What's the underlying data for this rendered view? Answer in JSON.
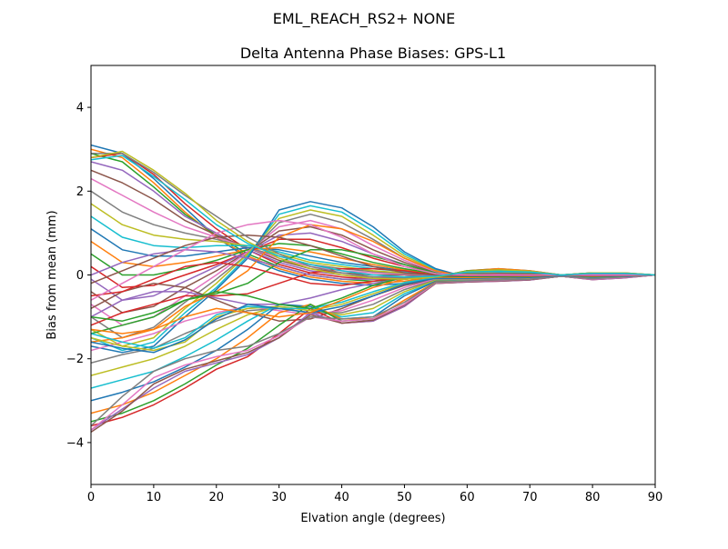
{
  "figure": {
    "suptitle": "EML_REACH_RS2+  NONE"
  },
  "chart_data": {
    "type": "line",
    "title": "Delta Antenna Phase Biases: GPS-L1",
    "xlabel": "Elvation angle (degrees)",
    "ylabel": "Bias from mean (mm)",
    "xlim": [
      0,
      90
    ],
    "ylim": [
      -5,
      5
    ],
    "x": [
      0,
      5,
      10,
      15,
      20,
      25,
      30,
      35,
      40,
      45,
      50,
      55,
      60,
      65,
      70,
      75,
      80,
      85,
      90
    ],
    "xticks": [
      0,
      10,
      20,
      30,
      40,
      50,
      60,
      70,
      80,
      90
    ],
    "yticks": [
      -4,
      -2,
      0,
      2,
      4
    ],
    "xtick_labels": [
      "0",
      "10",
      "20",
      "30",
      "40",
      "50",
      "60",
      "70",
      "80",
      "90"
    ],
    "ytick_labels": [
      "−4",
      "−2",
      "0",
      "2",
      "4"
    ],
    "grid": false,
    "legend": false,
    "colors": [
      "#1f77b4",
      "#ff7f0e",
      "#2ca02c",
      "#d62728",
      "#9467bd",
      "#8c564b",
      "#e377c2",
      "#7f7f7f",
      "#bcbd22",
      "#17becf"
    ],
    "series": [
      {
        "values": [
          3.1,
          2.9,
          2.3,
          1.6,
          0.9,
          0.4,
          0.1,
          -0.1,
          -0.2,
          -0.25,
          -0.2,
          -0.1,
          0.1,
          0.15,
          0.1,
          0.0,
          0.05,
          0.05,
          0.0
        ]
      },
      {
        "values": [
          3.0,
          2.8,
          2.2,
          1.5,
          0.9,
          0.45,
          0.15,
          -0.05,
          -0.15,
          -0.2,
          -0.15,
          -0.05,
          0.1,
          0.15,
          0.1,
          0.0,
          0.05,
          0.05,
          0.0
        ]
      },
      {
        "values": [
          2.9,
          2.7,
          2.1,
          1.45,
          0.95,
          0.5,
          0.2,
          0.0,
          -0.1,
          -0.15,
          -0.1,
          -0.05,
          0.1,
          0.12,
          0.08,
          0.0,
          0.05,
          0.04,
          0.0
        ]
      },
      {
        "values": [
          2.8,
          2.9,
          2.4,
          1.7,
          1.1,
          0.6,
          0.25,
          0.05,
          -0.05,
          -0.1,
          -0.1,
          -0.05,
          0.08,
          0.1,
          0.08,
          0.0,
          0.04,
          0.04,
          0.0
        ]
      },
      {
        "values": [
          2.7,
          2.5,
          2.0,
          1.4,
          1.0,
          0.6,
          0.3,
          0.1,
          0.0,
          -0.05,
          -0.05,
          -0.02,
          0.07,
          0.1,
          0.06,
          0.0,
          0.04,
          0.03,
          0.0
        ]
      },
      {
        "values": [
          2.5,
          2.2,
          1.8,
          1.3,
          0.95,
          0.65,
          0.35,
          0.15,
          0.05,
          0.0,
          0.0,
          -0.02,
          0.06,
          0.08,
          0.06,
          0.0,
          0.03,
          0.03,
          0.0
        ]
      },
      {
        "values": [
          2.3,
          1.9,
          1.5,
          1.15,
          0.9,
          0.65,
          0.4,
          0.2,
          0.1,
          0.05,
          0.02,
          0.0,
          0.05,
          0.07,
          0.05,
          0.0,
          0.03,
          0.02,
          0.0
        ]
      },
      {
        "values": [
          2.0,
          1.5,
          1.2,
          1.0,
          0.85,
          0.65,
          0.45,
          0.25,
          0.15,
          0.08,
          0.04,
          0.0,
          0.04,
          0.06,
          0.04,
          0.0,
          0.02,
          0.02,
          0.0
        ]
      },
      {
        "values": [
          1.7,
          1.2,
          0.95,
          0.85,
          0.8,
          0.7,
          0.5,
          0.3,
          0.2,
          0.1,
          0.05,
          0.0,
          0.04,
          0.05,
          0.04,
          0.0,
          0.02,
          0.02,
          0.0
        ]
      },
      {
        "values": [
          1.4,
          0.9,
          0.7,
          0.65,
          0.7,
          0.7,
          0.55,
          0.35,
          0.25,
          0.15,
          0.08,
          0.0,
          0.03,
          0.05,
          0.03,
          0.0,
          0.02,
          0.01,
          0.0
        ]
      },
      {
        "values": [
          1.1,
          0.6,
          0.45,
          0.45,
          0.55,
          0.65,
          0.6,
          0.45,
          0.3,
          0.2,
          0.1,
          0.02,
          0.03,
          0.04,
          0.03,
          0.0,
          0.01,
          0.01,
          0.0
        ]
      },
      {
        "values": [
          0.8,
          0.3,
          0.2,
          0.3,
          0.45,
          0.6,
          0.65,
          0.55,
          0.4,
          0.25,
          0.12,
          0.03,
          0.02,
          0.03,
          0.02,
          0.0,
          0.01,
          0.01,
          0.0
        ]
      },
      {
        "values": [
          0.5,
          0.0,
          0.0,
          0.15,
          0.35,
          0.6,
          0.75,
          0.7,
          0.5,
          0.3,
          0.15,
          0.03,
          0.01,
          0.02,
          0.02,
          0.0,
          0.01,
          0.0,
          0.0
        ]
      },
      {
        "values": [
          0.2,
          -0.3,
          -0.25,
          0.0,
          0.25,
          0.55,
          0.85,
          0.85,
          0.65,
          0.4,
          0.2,
          0.05,
          0.0,
          0.02,
          0.01,
          0.0,
          0.0,
          0.0,
          0.0
        ]
      },
      {
        "values": [
          -0.1,
          -0.6,
          -0.5,
          -0.15,
          0.2,
          0.55,
          0.95,
          1.0,
          0.8,
          0.5,
          0.25,
          0.06,
          0.0,
          0.01,
          0.0,
          0.0,
          0.0,
          0.0,
          0.0
        ]
      },
      {
        "values": [
          -0.4,
          -0.9,
          -0.75,
          -0.3,
          0.1,
          0.55,
          1.05,
          1.15,
          0.95,
          0.6,
          0.3,
          0.07,
          -0.01,
          0.0,
          0.0,
          0.0,
          0.0,
          0.0,
          0.0
        ]
      },
      {
        "values": [
          -0.7,
          -1.2,
          -1.0,
          -0.5,
          0.0,
          0.55,
          1.15,
          1.3,
          1.1,
          0.7,
          0.35,
          0.08,
          -0.02,
          0.0,
          -0.01,
          0.0,
          0.0,
          0.0,
          0.0
        ]
      },
      {
        "values": [
          -1.0,
          -1.5,
          -1.25,
          -0.65,
          -0.1,
          0.5,
          1.25,
          1.45,
          1.25,
          0.85,
          0.4,
          0.1,
          -0.03,
          -0.01,
          -0.02,
          0.0,
          -0.01,
          0.0,
          0.0
        ]
      },
      {
        "values": [
          -1.3,
          -1.7,
          -1.5,
          -0.8,
          -0.2,
          0.5,
          1.35,
          1.55,
          1.4,
          0.95,
          0.45,
          0.12,
          -0.04,
          -0.02,
          -0.02,
          0.0,
          -0.01,
          0.0,
          0.0
        ]
      },
      {
        "values": [
          -1.5,
          -1.8,
          -1.6,
          -0.9,
          -0.3,
          0.45,
          1.45,
          1.65,
          1.5,
          1.05,
          0.5,
          0.13,
          -0.05,
          -0.03,
          -0.03,
          0.0,
          -0.02,
          0.0,
          0.0
        ]
      },
      {
        "values": [
          -1.7,
          -1.85,
          -1.7,
          -1.0,
          -0.35,
          0.4,
          1.55,
          1.75,
          1.6,
          1.15,
          0.55,
          0.15,
          -0.06,
          -0.04,
          -0.03,
          0.0,
          -0.02,
          -0.01,
          0.0
        ]
      },
      {
        "values": [
          -1.6,
          -1.5,
          -1.3,
          -0.75,
          -0.4,
          0.1,
          0.9,
          1.2,
          1.1,
          0.8,
          0.4,
          0.1,
          -0.05,
          -0.05,
          -0.04,
          0.0,
          -0.03,
          -0.01,
          0.0
        ]
      },
      {
        "values": [
          -1.4,
          -1.2,
          -1.0,
          -0.6,
          -0.45,
          -0.2,
          0.3,
          0.6,
          0.6,
          0.45,
          0.25,
          0.05,
          -0.06,
          -0.06,
          -0.05,
          0.0,
          -0.04,
          -0.02,
          0.0
        ]
      },
      {
        "values": [
          -1.2,
          -0.9,
          -0.7,
          -0.5,
          -0.5,
          -0.45,
          -0.2,
          0.05,
          0.15,
          0.15,
          0.1,
          0.0,
          -0.07,
          -0.07,
          -0.05,
          0.0,
          -0.05,
          -0.03,
          0.0
        ]
      },
      {
        "values": [
          -1.0,
          -0.6,
          -0.4,
          -0.4,
          -0.55,
          -0.7,
          -0.7,
          -0.55,
          -0.35,
          -0.2,
          -0.08,
          -0.05,
          -0.08,
          -0.08,
          -0.06,
          0.0,
          -0.06,
          -0.03,
          0.0
        ]
      },
      {
        "values": [
          -0.8,
          -0.4,
          -0.2,
          -0.3,
          -0.6,
          -0.9,
          -1.1,
          -1.05,
          -0.8,
          -0.5,
          -0.25,
          -0.1,
          -0.1,
          -0.09,
          -0.07,
          -0.01,
          -0.07,
          -0.04,
          0.0
        ]
      },
      {
        "values": [
          -1.8,
          -1.6,
          -1.4,
          -1.1,
          -0.9,
          -0.75,
          -0.85,
          -0.95,
          -0.85,
          -0.6,
          -0.3,
          -0.1,
          -0.1,
          -0.1,
          -0.08,
          -0.01,
          -0.07,
          -0.04,
          0.0
        ]
      },
      {
        "values": [
          -2.1,
          -1.9,
          -1.75,
          -1.4,
          -1.1,
          -0.85,
          -0.8,
          -0.9,
          -0.9,
          -0.7,
          -0.35,
          -0.12,
          -0.12,
          -0.11,
          -0.08,
          -0.02,
          -0.08,
          -0.05,
          0.0
        ]
      },
      {
        "values": [
          -2.4,
          -2.2,
          -2.0,
          -1.7,
          -1.3,
          -0.95,
          -0.75,
          -0.85,
          -0.95,
          -0.8,
          -0.4,
          -0.13,
          -0.13,
          -0.12,
          -0.09,
          -0.02,
          -0.08,
          -0.05,
          0.0
        ]
      },
      {
        "values": [
          -2.7,
          -2.5,
          -2.3,
          -1.95,
          -1.55,
          -1.1,
          -0.7,
          -0.8,
          -1.0,
          -0.9,
          -0.45,
          -0.15,
          -0.14,
          -0.13,
          -0.1,
          -0.02,
          -0.09,
          -0.06,
          0.0
        ]
      },
      {
        "values": [
          -3.0,
          -2.8,
          -2.55,
          -2.2,
          -1.8,
          -1.3,
          -0.7,
          -0.75,
          -1.05,
          -1.0,
          -0.5,
          -0.15,
          -0.15,
          -0.13,
          -0.1,
          -0.02,
          -0.09,
          -0.06,
          0.0
        ]
      },
      {
        "values": [
          -3.3,
          -3.1,
          -2.8,
          -2.4,
          -2.0,
          -1.5,
          -0.9,
          -0.7,
          -1.05,
          -1.05,
          -0.6,
          -0.17,
          -0.15,
          -0.14,
          -0.11,
          -0.03,
          -0.1,
          -0.06,
          0.0
        ]
      },
      {
        "values": [
          -3.5,
          -3.3,
          -3.0,
          -2.6,
          -2.15,
          -1.75,
          -1.2,
          -0.7,
          -1.1,
          -1.05,
          -0.7,
          -0.18,
          -0.16,
          -0.14,
          -0.11,
          -0.03,
          -0.1,
          -0.06,
          0.0
        ]
      },
      {
        "values": [
          -3.6,
          -3.4,
          -3.1,
          -2.7,
          -2.25,
          -1.95,
          -1.4,
          -0.8,
          -1.15,
          -1.1,
          -0.75,
          -0.2,
          -0.17,
          -0.15,
          -0.12,
          -0.03,
          -0.11,
          -0.07,
          0.0
        ]
      },
      {
        "values": [
          -3.7,
          -3.2,
          -2.7,
          -2.3,
          -2.1,
          -1.9,
          -1.5,
          -0.9,
          -1.15,
          -1.1,
          -0.75,
          -0.2,
          -0.17,
          -0.15,
          -0.12,
          -0.03,
          -0.11,
          -0.07,
          0.0
        ]
      },
      {
        "values": [
          -3.75,
          -3.25,
          -2.6,
          -2.25,
          -2.05,
          -1.85,
          -1.5,
          -0.95,
          -1.15,
          -1.08,
          -0.72,
          -0.2,
          -0.16,
          -0.14,
          -0.11,
          -0.03,
          -0.1,
          -0.06,
          0.0
        ]
      },
      {
        "values": [
          -3.7,
          -3.1,
          -2.45,
          -2.15,
          -1.95,
          -1.8,
          -1.45,
          -1.0,
          -1.1,
          -1.05,
          -0.7,
          -0.19,
          -0.15,
          -0.13,
          -0.1,
          -0.03,
          -0.1,
          -0.06,
          0.0
        ]
      },
      {
        "values": [
          -3.6,
          -2.9,
          -2.3,
          -2.0,
          -1.8,
          -1.7,
          -1.4,
          -1.0,
          -1.05,
          -1.0,
          -0.65,
          -0.18,
          -0.14,
          -0.12,
          -0.1,
          -0.03,
          -0.09,
          -0.05,
          0.0
        ]
      },
      {
        "values": [
          -1.5,
          -1.7,
          -1.8,
          -1.6,
          -1.0,
          -0.8,
          -0.75,
          -0.85,
          -0.7,
          -0.45,
          -0.2,
          -0.08,
          -0.08,
          -0.07,
          -0.05,
          -0.01,
          -0.05,
          -0.03,
          0.0
        ]
      },
      {
        "values": [
          -1.4,
          -1.6,
          -1.75,
          -1.5,
          -0.95,
          -0.75,
          -0.8,
          -0.8,
          -0.65,
          -0.4,
          -0.18,
          -0.07,
          -0.07,
          -0.06,
          -0.05,
          -0.01,
          -0.05,
          -0.03,
          0.0
        ]
      },
      {
        "values": [
          -1.6,
          -1.75,
          -1.85,
          -1.55,
          -1.05,
          -0.7,
          -0.8,
          -0.9,
          -0.75,
          -0.5,
          -0.22,
          -0.08,
          -0.08,
          -0.07,
          -0.06,
          -0.01,
          -0.05,
          -0.03,
          0.0
        ]
      },
      {
        "values": [
          -1.3,
          -1.4,
          -1.3,
          -1.0,
          -0.8,
          -0.9,
          -1.0,
          -0.9,
          -0.6,
          -0.3,
          -0.1,
          -0.05,
          -0.06,
          -0.05,
          -0.04,
          0.0,
          -0.04,
          -0.02,
          0.0
        ]
      },
      {
        "values": [
          -1.0,
          -1.1,
          -0.9,
          -0.6,
          -0.4,
          -0.5,
          -0.7,
          -0.8,
          -0.55,
          -0.25,
          -0.05,
          -0.03,
          -0.04,
          -0.04,
          -0.03,
          0.0,
          -0.03,
          -0.02,
          0.0
        ]
      },
      {
        "values": [
          -0.5,
          -0.4,
          -0.1,
          0.2,
          0.3,
          0.2,
          0.0,
          -0.2,
          -0.25,
          -0.15,
          -0.05,
          -0.02,
          -0.02,
          -0.02,
          -0.02,
          0.0,
          -0.02,
          -0.01,
          0.0
        ]
      },
      {
        "values": [
          0.0,
          0.3,
          0.5,
          0.6,
          0.55,
          0.4,
          0.2,
          0.0,
          -0.1,
          -0.1,
          -0.05,
          -0.01,
          -0.01,
          -0.01,
          -0.01,
          0.0,
          -0.01,
          -0.01,
          0.0
        ]
      },
      {
        "values": [
          -0.2,
          0.1,
          0.4,
          0.7,
          0.9,
          0.95,
          0.9,
          0.7,
          0.45,
          0.2,
          0.05,
          0.0,
          0.0,
          0.0,
          0.0,
          0.0,
          0.0,
          0.0,
          0.0
        ]
      },
      {
        "values": [
          -0.6,
          -0.2,
          0.2,
          0.6,
          1.0,
          1.2,
          1.3,
          1.2,
          0.9,
          0.5,
          0.2,
          0.03,
          0.0,
          0.0,
          0.0,
          0.0,
          0.0,
          0.0,
          0.0
        ]
      },
      {
        "values": [
          2.9,
          2.9,
          2.45,
          1.9,
          1.4,
          0.9,
          0.5,
          0.2,
          0.05,
          -0.05,
          -0.08,
          -0.04,
          0.08,
          0.1,
          0.08,
          0.0,
          0.04,
          0.04,
          0.0
        ]
      },
      {
        "values": [
          2.8,
          2.95,
          2.5,
          1.95,
          1.3,
          0.8,
          0.4,
          0.15,
          0.0,
          -0.08,
          -0.1,
          -0.05,
          0.09,
          0.12,
          0.09,
          0.0,
          0.05,
          0.05,
          0.0
        ]
      },
      {
        "values": [
          2.75,
          2.85,
          2.35,
          1.8,
          1.2,
          0.75,
          0.45,
          0.25,
          0.1,
          0.0,
          -0.05,
          -0.03,
          0.07,
          0.09,
          0.07,
          0.0,
          0.04,
          0.04,
          0.0
        ]
      }
    ]
  }
}
